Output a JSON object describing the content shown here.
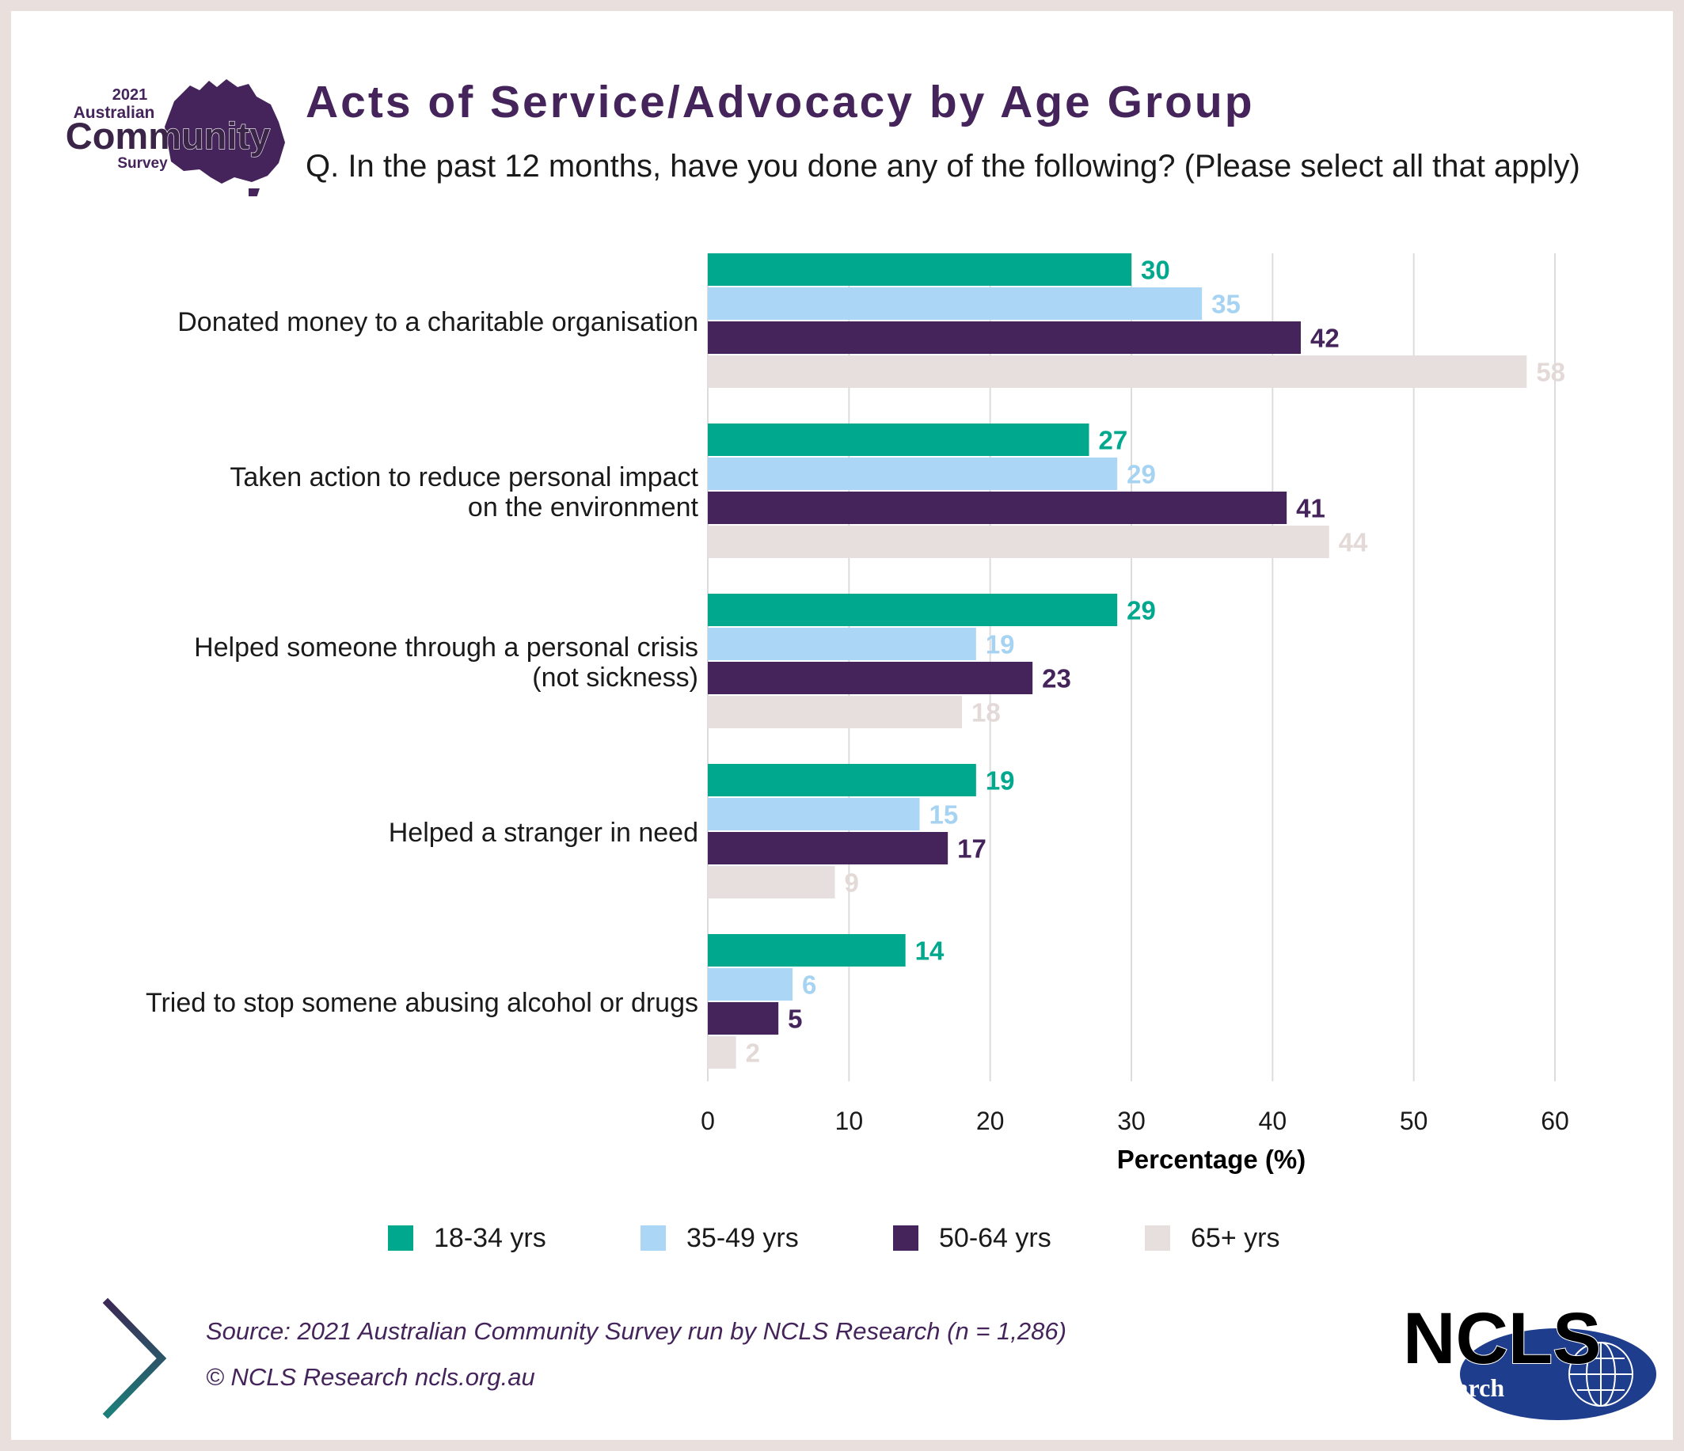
{
  "header": {
    "logo": {
      "year": "2021",
      "line1": "Australian",
      "line2": "Community",
      "line3": "Survey"
    },
    "title": "Acts of Service/Advocacy by Age Group",
    "question": "Q. In the past 12 months, have you done any of the following? (Please select all that apply)"
  },
  "chart_data": {
    "type": "bar",
    "orientation": "horizontal",
    "title": "Acts of Service/Advocacy by Age Group",
    "xlabel": "Percentage (%)",
    "ylabel": "",
    "xlim": [
      0,
      60
    ],
    "x_ticks": [
      0,
      10,
      20,
      30,
      40,
      50,
      60
    ],
    "grid": "vertical",
    "legend_position": "bottom",
    "categories": [
      [
        "Donated money to a charitable organisation"
      ],
      [
        "Taken action to reduce personal impact",
        "on the environment"
      ],
      [
        "Helped someone through a personal crisis",
        "(not sickness)"
      ],
      [
        "Helped a stranger in need"
      ],
      [
        "Tried to stop somene abusing alcohol or drugs"
      ]
    ],
    "series": [
      {
        "name": "18-34 yrs",
        "color": "#00a88e",
        "label_color": "#00a88e",
        "values": [
          30,
          27,
          29,
          19,
          14
        ]
      },
      {
        "name": "35-49 yrs",
        "color": "#acd6f5",
        "label_color": "#a6d3f2",
        "values": [
          35,
          29,
          19,
          15,
          6
        ]
      },
      {
        "name": "50-64 yrs",
        "color": "#44245a",
        "label_color": "#44245a",
        "values": [
          42,
          41,
          23,
          17,
          5
        ]
      },
      {
        "name": "65+ yrs",
        "color": "#e7dfdd",
        "label_color": "#e3dad8",
        "values": [
          58,
          44,
          18,
          9,
          2
        ]
      }
    ]
  },
  "footer": {
    "source": "Source: 2021 Australian Community Survey run by NCLS Research (n = 1,286)",
    "copyright": "© NCLS Research   ncls.org.au",
    "logo_top": "NCLS",
    "logo_bottom": "research"
  }
}
